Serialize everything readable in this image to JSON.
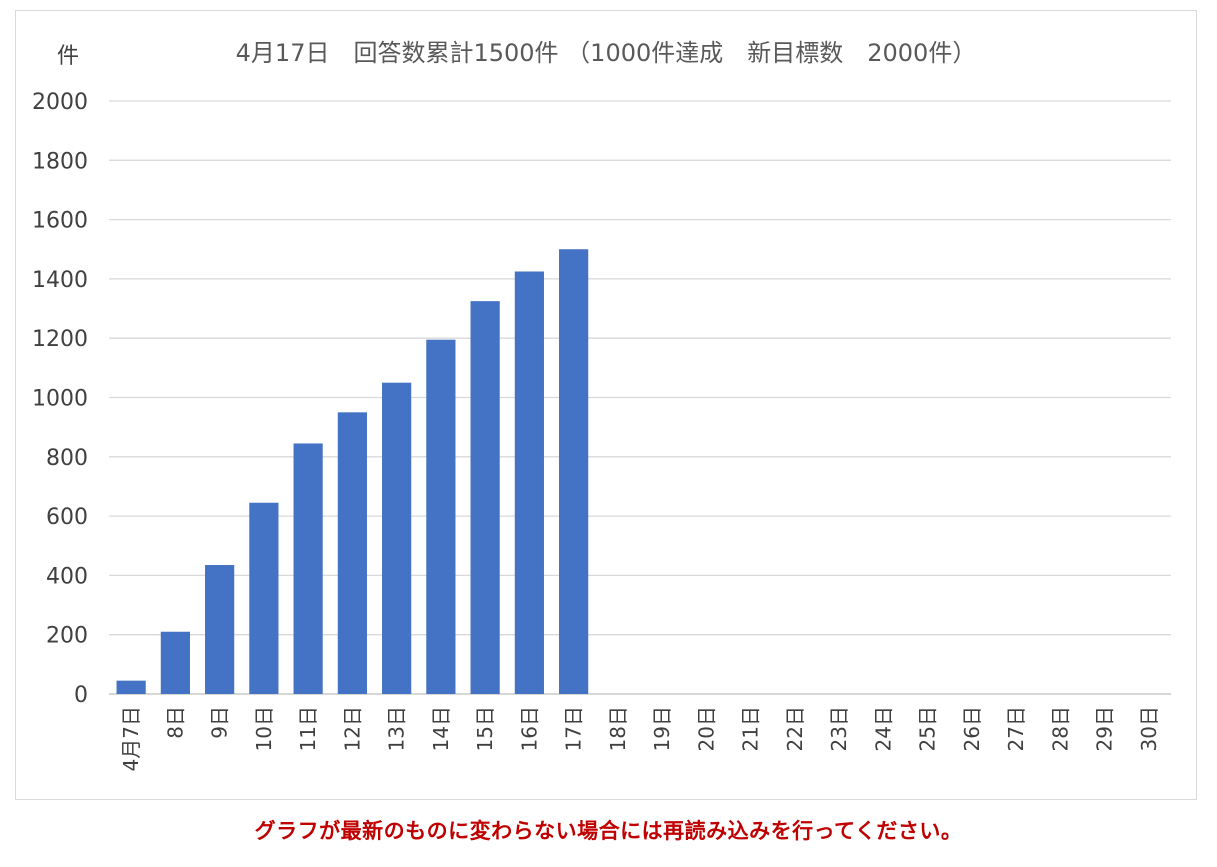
{
  "chart_data": {
    "type": "bar",
    "title": "4月17日　回答数累計1500件 （1000件達成　新目標数　2000件）",
    "ylabel": "件",
    "xlabel": "",
    "ylim": [
      0,
      2000
    ],
    "yticks": [
      "0",
      "200",
      "400",
      "600",
      "800",
      "1000",
      "1200",
      "1400",
      "1600",
      "1800",
      "2000"
    ],
    "grid": true,
    "bar_color": "#4472c4",
    "categories": [
      "4月7日",
      "8日",
      "9日",
      "10日",
      "11日",
      "12日",
      "13日",
      "14日",
      "15日",
      "16日",
      "17日",
      "18日",
      "19日",
      "20日",
      "21日",
      "22日",
      "23日",
      "24日",
      "25日",
      "26日",
      "27日",
      "28日",
      "29日",
      "30日"
    ],
    "values": [
      45,
      210,
      435,
      645,
      845,
      950,
      1050,
      1195,
      1325,
      1425,
      1500,
      null,
      null,
      null,
      null,
      null,
      null,
      null,
      null,
      null,
      null,
      null,
      null,
      null
    ]
  },
  "notice": "グラフが最新のものに変わらない場合には再読み込みを行ってください。",
  "colors": {
    "notice": "#c00000",
    "grid": "#d9d9d9",
    "text": "#595959"
  }
}
